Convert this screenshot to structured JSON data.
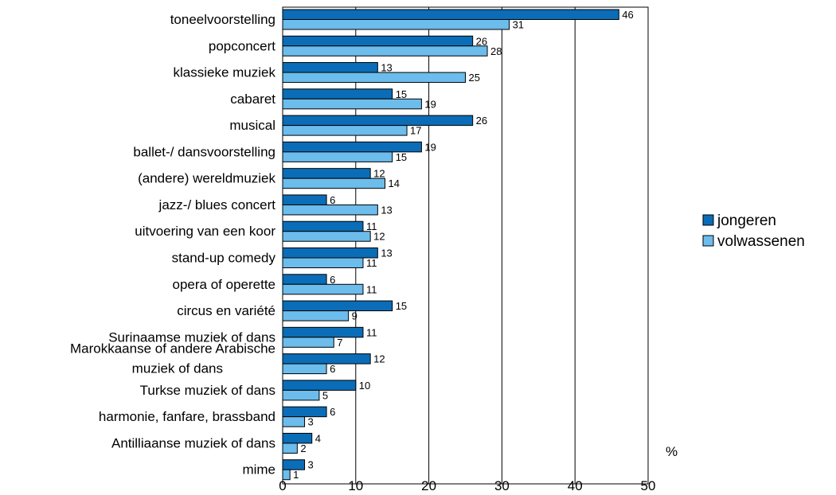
{
  "chart_data": {
    "type": "bar",
    "orientation": "horizontal",
    "categories": [
      "toneelvoorstelling",
      "popconcert",
      "klassieke muziek",
      "cabaret",
      "musical",
      "ballet-/ dansvoorstelling",
      "(andere) wereldmuziek",
      "jazz-/ blues concert",
      "uitvoering van een koor",
      "stand-up comedy",
      "opera of operette",
      "circus en variété",
      "Surinaamse muziek of dans",
      "Marokkaanse of andere Arabische muziek of dans",
      "Turkse muziek of dans",
      "harmonie, fanfare, brassband",
      "Antilliaanse muziek of dans",
      "mime"
    ],
    "category_lines": {
      "13": [
        "Marokkaanse of andere Arabische",
        "muziek of dans"
      ]
    },
    "series": [
      {
        "name": "jongeren",
        "color": "#0b6db7",
        "values": [
          46,
          26,
          13,
          15,
          26,
          19,
          12,
          6,
          11,
          13,
          6,
          15,
          11,
          12,
          10,
          6,
          4,
          3
        ]
      },
      {
        "name": "volwassenen",
        "color": "#6cbcec",
        "values": [
          31,
          28,
          25,
          19,
          17,
          15,
          14,
          13,
          12,
          11,
          11,
          9,
          7,
          6,
          5,
          3,
          2,
          1
        ]
      }
    ],
    "xlim": [
      0,
      50
    ],
    "xticks": [
      0,
      10,
      20,
      30,
      40,
      50
    ],
    "xunit": "%",
    "grid": "vertical",
    "legend_position": "right",
    "title": "",
    "xlabel": "",
    "ylabel": ""
  }
}
